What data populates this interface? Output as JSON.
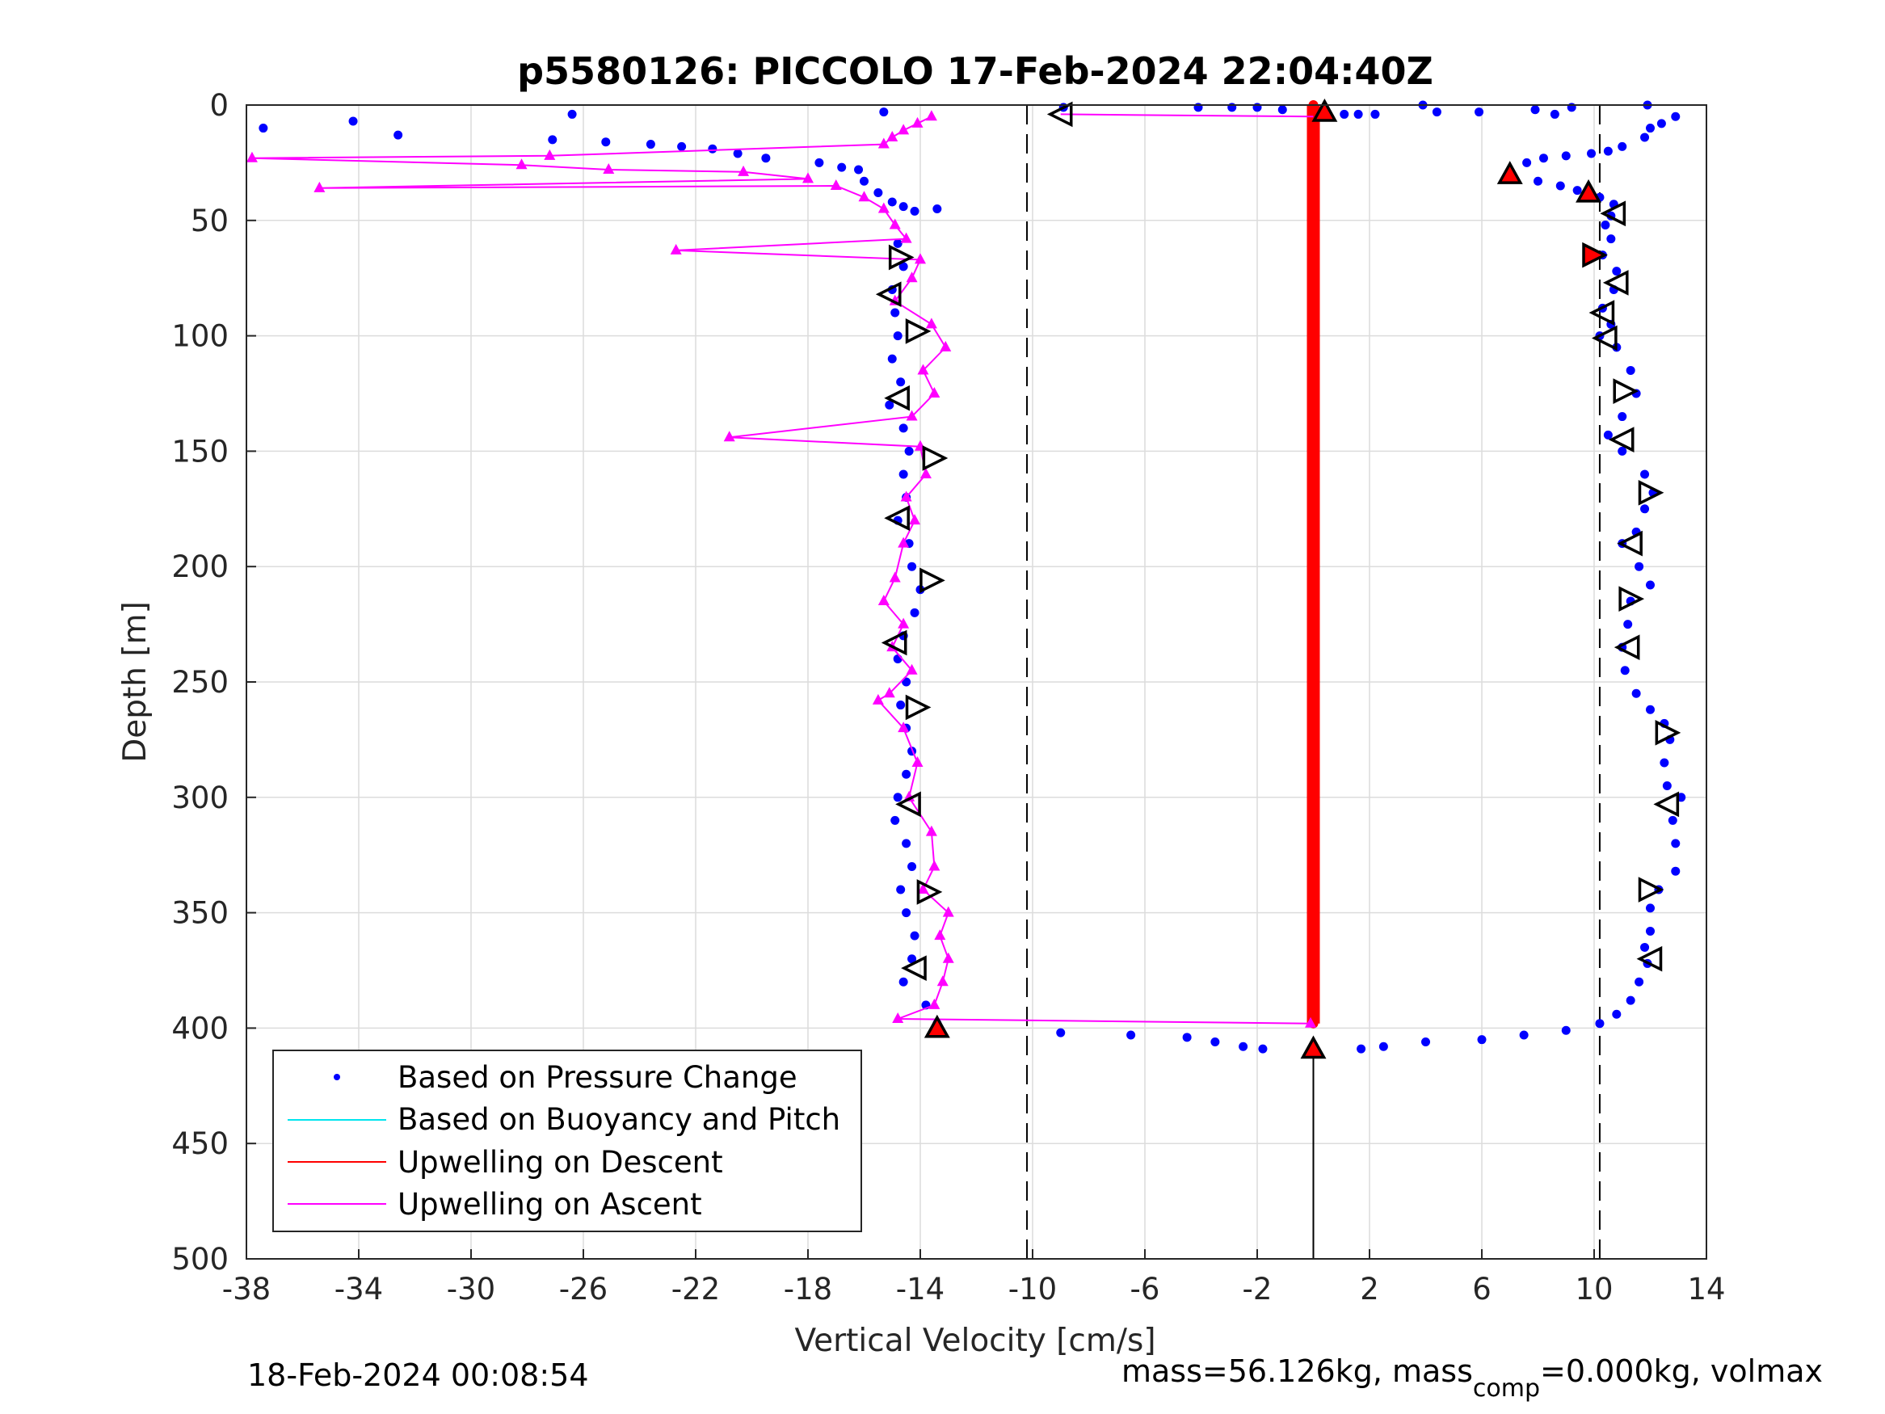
{
  "chart_data": {
    "type": "scatter",
    "title": "p5580126: PICCOLO 17-Feb-2024 22:04:40Z",
    "xlabel": "Vertical Velocity [cm/s]",
    "ylabel": "Depth [m]",
    "xlim": [
      -38,
      14
    ],
    "ylim": [
      500,
      0
    ],
    "y_reversed": true,
    "grid": true,
    "x_ticks": [
      -38,
      -34,
      -30,
      -26,
      -22,
      -18,
      -14,
      -10,
      -6,
      -2,
      2,
      6,
      10,
      14
    ],
    "x_tick_labels": [
      "-38",
      "-34",
      "-30",
      "-26",
      "-22",
      "-18",
      "-14",
      "-10",
      "-6",
      "-2",
      "2",
      "6",
      "10",
      "14"
    ],
    "y_ticks": [
      0,
      50,
      100,
      150,
      200,
      250,
      300,
      350,
      400,
      450,
      500
    ],
    "y_tick_labels": [
      "0",
      "50",
      "100",
      "150",
      "200",
      "250",
      "300",
      "350",
      "400",
      "450",
      "500"
    ],
    "legend_position": "lower-left",
    "legend": [
      {
        "label": "Based on Pressure Change",
        "color": "#0000ff",
        "marker": "dot"
      },
      {
        "label": "Based on Buoyancy and Pitch",
        "color": "#00e5ee",
        "marker": "line"
      },
      {
        "label": "Upwelling on Descent",
        "color": "#ff0000",
        "marker": "line"
      },
      {
        "label": "Upwelling on Ascent",
        "color": "#ff00ff",
        "marker": "line"
      }
    ],
    "reference_lines": [
      {
        "x": -10.2,
        "style": "dashed",
        "color": "#000000"
      },
      {
        "x": 10.2,
        "style": "dashed",
        "color": "#000000"
      }
    ],
    "series": [
      {
        "name": "Based on Pressure Change",
        "color": "#0000ff",
        "points": [
          [
            -37.4,
            10
          ],
          [
            -34.2,
            7
          ],
          [
            -32.6,
            13
          ],
          [
            -26.4,
            4
          ],
          [
            -27.1,
            15
          ],
          [
            -25.2,
            16
          ],
          [
            -23.6,
            17
          ],
          [
            -22.5,
            18
          ],
          [
            -21.4,
            19
          ],
          [
            -20.5,
            21
          ],
          [
            -19.5,
            23
          ],
          [
            -17.6,
            25
          ],
          [
            -16.8,
            27
          ],
          [
            -16.2,
            28
          ],
          [
            -16.0,
            33
          ],
          [
            -15.5,
            38
          ],
          [
            -15.0,
            42
          ],
          [
            -14.6,
            44
          ],
          [
            -14.2,
            46
          ],
          [
            -13.4,
            45
          ],
          [
            -15.3,
            3
          ],
          [
            -14.8,
            60
          ],
          [
            -14.6,
            70
          ],
          [
            -15.0,
            80
          ],
          [
            -14.9,
            90
          ],
          [
            -14.8,
            100
          ],
          [
            -15.0,
            110
          ],
          [
            -14.7,
            120
          ],
          [
            -15.1,
            130
          ],
          [
            -14.6,
            140
          ],
          [
            -14.4,
            150
          ],
          [
            -14.6,
            160
          ],
          [
            -14.5,
            170
          ],
          [
            -14.8,
            180
          ],
          [
            -14.4,
            190
          ],
          [
            -14.3,
            200
          ],
          [
            -14.0,
            210
          ],
          [
            -14.2,
            220
          ],
          [
            -14.6,
            230
          ],
          [
            -14.8,
            240
          ],
          [
            -14.5,
            250
          ],
          [
            -14.7,
            260
          ],
          [
            -14.5,
            270
          ],
          [
            -14.3,
            280
          ],
          [
            -14.5,
            290
          ],
          [
            -14.8,
            300
          ],
          [
            -14.9,
            310
          ],
          [
            -14.5,
            320
          ],
          [
            -14.3,
            330
          ],
          [
            -14.7,
            340
          ],
          [
            -14.5,
            350
          ],
          [
            -14.2,
            360
          ],
          [
            -14.3,
            370
          ],
          [
            -14.6,
            380
          ],
          [
            -13.8,
            390
          ],
          [
            -13.4,
            398
          ],
          [
            -9.0,
            402
          ],
          [
            -6.5,
            403
          ],
          [
            -4.5,
            404
          ],
          [
            -3.5,
            406
          ],
          [
            -2.5,
            408
          ],
          [
            -1.8,
            409
          ],
          [
            -8.9,
            1
          ],
          [
            -4.1,
            1
          ],
          [
            -2.9,
            1
          ],
          [
            -2.0,
            1
          ],
          [
            -1.1,
            2
          ],
          [
            1.1,
            4
          ],
          [
            1.6,
            4
          ],
          [
            2.2,
            4
          ],
          [
            3.9,
            0
          ],
          [
            4.4,
            3
          ],
          [
            5.9,
            3
          ],
          [
            7.9,
            2
          ],
          [
            8.6,
            4
          ],
          [
            9.2,
            1
          ],
          [
            11.9,
            0
          ],
          [
            12.9,
            5
          ],
          [
            12.4,
            8
          ],
          [
            12.0,
            10
          ],
          [
            11.8,
            14
          ],
          [
            11.0,
            18
          ],
          [
            10.5,
            20
          ],
          [
            9.9,
            21
          ],
          [
            9.0,
            22
          ],
          [
            8.2,
            23
          ],
          [
            7.6,
            25
          ],
          [
            7.0,
            30
          ],
          [
            8.0,
            33
          ],
          [
            8.8,
            35
          ],
          [
            9.4,
            37
          ],
          [
            10.2,
            40
          ],
          [
            10.7,
            43
          ],
          [
            10.6,
            48
          ],
          [
            10.4,
            52
          ],
          [
            10.6,
            58
          ],
          [
            10.3,
            65
          ],
          [
            10.8,
            72
          ],
          [
            10.7,
            80
          ],
          [
            10.3,
            88
          ],
          [
            10.6,
            95
          ],
          [
            10.2,
            100
          ],
          [
            10.8,
            105
          ],
          [
            11.3,
            115
          ],
          [
            11.5,
            125
          ],
          [
            11.0,
            135
          ],
          [
            10.5,
            143
          ],
          [
            11.0,
            150
          ],
          [
            11.8,
            160
          ],
          [
            12.1,
            168
          ],
          [
            11.8,
            175
          ],
          [
            11.5,
            185
          ],
          [
            11.0,
            190
          ],
          [
            11.6,
            200
          ],
          [
            12.0,
            208
          ],
          [
            11.3,
            215
          ],
          [
            11.2,
            225
          ],
          [
            11.0,
            235
          ],
          [
            11.1,
            245
          ],
          [
            11.5,
            255
          ],
          [
            12.0,
            262
          ],
          [
            12.5,
            268
          ],
          [
            12.7,
            275
          ],
          [
            12.5,
            285
          ],
          [
            12.6,
            295
          ],
          [
            13.1,
            300
          ],
          [
            12.8,
            310
          ],
          [
            12.9,
            320
          ],
          [
            12.9,
            332
          ],
          [
            12.3,
            340
          ],
          [
            12.0,
            348
          ],
          [
            12.0,
            358
          ],
          [
            11.8,
            365
          ],
          [
            11.9,
            372
          ],
          [
            11.6,
            380
          ],
          [
            11.3,
            388
          ],
          [
            10.8,
            394
          ],
          [
            10.2,
            398
          ],
          [
            9.0,
            401
          ],
          [
            7.5,
            403
          ],
          [
            6.0,
            405
          ],
          [
            4.0,
            406
          ],
          [
            2.5,
            408
          ],
          [
            1.7,
            409
          ]
        ]
      },
      {
        "name": "Upwelling on Descent",
        "color": "#ff0000",
        "points": [
          [
            0.0,
            0
          ],
          [
            0.0,
            100
          ],
          [
            0.0,
            200
          ],
          [
            0.0,
            300
          ],
          [
            0.0,
            398
          ]
        ]
      },
      {
        "name": "Upwelling on Ascent",
        "color": "#ff00ff",
        "points": [
          [
            -13.6,
            5
          ],
          [
            -14.1,
            8
          ],
          [
            -14.6,
            11
          ],
          [
            -15.0,
            14
          ],
          [
            -15.3,
            17
          ],
          [
            -27.2,
            22
          ],
          [
            -37.8,
            23
          ],
          [
            -28.2,
            26
          ],
          [
            -25.1,
            28
          ],
          [
            -20.3,
            29
          ],
          [
            -18.0,
            32
          ],
          [
            -35.4,
            36
          ],
          [
            -17.0,
            35
          ],
          [
            -16.0,
            40
          ],
          [
            -15.3,
            45
          ],
          [
            -14.9,
            52
          ],
          [
            -14.5,
            58
          ],
          [
            -22.7,
            63
          ],
          [
            -14.0,
            67
          ],
          [
            -14.3,
            75
          ],
          [
            -14.9,
            85
          ],
          [
            -13.6,
            95
          ],
          [
            -13.1,
            105
          ],
          [
            -13.9,
            115
          ],
          [
            -13.5,
            125
          ],
          [
            -14.3,
            135
          ],
          [
            -20.8,
            144
          ],
          [
            -14.0,
            148
          ],
          [
            -13.8,
            160
          ],
          [
            -14.5,
            170
          ],
          [
            -14.2,
            180
          ],
          [
            -14.6,
            190
          ],
          [
            -14.9,
            205
          ],
          [
            -15.3,
            215
          ],
          [
            -14.6,
            225
          ],
          [
            -15.0,
            235
          ],
          [
            -14.3,
            245
          ],
          [
            -15.1,
            255
          ],
          [
            -15.5,
            258
          ],
          [
            -14.6,
            270
          ],
          [
            -14.1,
            285
          ],
          [
            -14.4,
            300
          ],
          [
            -13.6,
            315
          ],
          [
            -13.5,
            330
          ],
          [
            -13.9,
            340
          ],
          [
            -13.0,
            350
          ],
          [
            -13.3,
            360
          ],
          [
            -13.0,
            370
          ],
          [
            -13.2,
            380
          ],
          [
            -13.5,
            390
          ],
          [
            -14.8,
            396
          ],
          [
            -0.1,
            398
          ]
        ]
      }
    ],
    "control_markers": [
      {
        "type": "left-open",
        "x": -9.0,
        "y": 4
      },
      {
        "type": "right-open",
        "x": -14.7,
        "y": 66
      },
      {
        "type": "left-open",
        "x": -15.1,
        "y": 82
      },
      {
        "type": "right-open",
        "x": -14.1,
        "y": 98
      },
      {
        "type": "left-open",
        "x": -14.8,
        "y": 127
      },
      {
        "type": "right-open",
        "x": -13.5,
        "y": 153
      },
      {
        "type": "left-open",
        "x": -14.8,
        "y": 179
      },
      {
        "type": "right-open",
        "x": -13.6,
        "y": 206
      },
      {
        "type": "left-open",
        "x": -14.9,
        "y": 233
      },
      {
        "type": "right-open",
        "x": -14.1,
        "y": 261
      },
      {
        "type": "left-open",
        "x": -14.4,
        "y": 303
      },
      {
        "type": "right-open",
        "x": -13.7,
        "y": 341
      },
      {
        "type": "left-open",
        "x": -14.2,
        "y": 374
      },
      {
        "type": "left-open",
        "x": 10.7,
        "y": 47
      },
      {
        "type": "left-open",
        "x": 10.8,
        "y": 77
      },
      {
        "type": "left-open",
        "x": 10.3,
        "y": 90
      },
      {
        "type": "left-open",
        "x": 10.4,
        "y": 101
      },
      {
        "type": "right-open",
        "x": 11.1,
        "y": 124
      },
      {
        "type": "left-open",
        "x": 11.0,
        "y": 145
      },
      {
        "type": "right-open",
        "x": 12.0,
        "y": 168
      },
      {
        "type": "left-open",
        "x": 11.3,
        "y": 190
      },
      {
        "type": "right-open",
        "x": 11.3,
        "y": 214
      },
      {
        "type": "left-open",
        "x": 11.2,
        "y": 235
      },
      {
        "type": "right-open",
        "x": 12.6,
        "y": 272
      },
      {
        "type": "left-open",
        "x": 12.6,
        "y": 303
      },
      {
        "type": "right-open",
        "x": 12.0,
        "y": 340
      },
      {
        "type": "left-open",
        "x": 12.0,
        "y": 370
      },
      {
        "type": "up-red",
        "x": 0.4,
        "y": 3
      },
      {
        "type": "up-red",
        "x": 7.0,
        "y": 30
      },
      {
        "type": "up-red",
        "x": 9.8,
        "y": 38
      },
      {
        "type": "right-red",
        "x": 10.0,
        "y": 65
      },
      {
        "type": "up-red",
        "x": -13.4,
        "y": 400
      },
      {
        "type": "up-red",
        "x": 0.0,
        "y": 409
      }
    ]
  },
  "footer": {
    "timestamp": "18-Feb-2024 00:08:54",
    "mass_text": "mass=56.126kg, mass",
    "mass_sub": "comp",
    "mass_rest": "=0.000kg, volmax"
  }
}
